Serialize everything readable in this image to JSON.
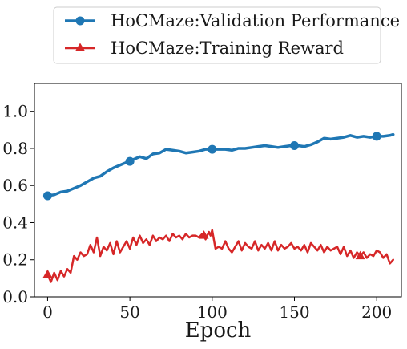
{
  "chart_data": {
    "type": "line",
    "xlabel": "Epoch",
    "ylabel": "",
    "xlim": [
      -8,
      215
    ],
    "ylim": [
      0.0,
      1.15
    ],
    "xticks": [
      0,
      50,
      100,
      150,
      200
    ],
    "yticks": [
      0.0,
      0.2,
      0.4,
      0.6,
      0.8,
      1.0
    ],
    "xtick_labels": [
      "0",
      "50",
      "100",
      "150",
      "200"
    ],
    "ytick_labels": [
      "0.0",
      "0.2",
      "0.4",
      "0.6",
      "0.8",
      "1.0"
    ],
    "grid": false,
    "legend_position": "top-center-outside",
    "series": [
      {
        "name": "HoCMaze:Validation Performance",
        "color": "#1f77b4",
        "marker": "circle",
        "marker_every": 50,
        "x": [
          0,
          4,
          8,
          12,
          16,
          20,
          24,
          28,
          32,
          36,
          40,
          44,
          48,
          50,
          52,
          56,
          60,
          64,
          68,
          72,
          76,
          80,
          84,
          88,
          92,
          96,
          100,
          104,
          108,
          112,
          116,
          120,
          124,
          128,
          132,
          136,
          140,
          144,
          148,
          150,
          152,
          156,
          160,
          164,
          168,
          172,
          176,
          180,
          184,
          188,
          192,
          196,
          200,
          204,
          208,
          210
        ],
        "values": [
          0.545,
          0.55,
          0.565,
          0.57,
          0.585,
          0.6,
          0.62,
          0.64,
          0.65,
          0.675,
          0.695,
          0.71,
          0.725,
          0.73,
          0.74,
          0.755,
          0.745,
          0.77,
          0.775,
          0.795,
          0.79,
          0.785,
          0.775,
          0.78,
          0.785,
          0.795,
          0.795,
          0.795,
          0.795,
          0.79,
          0.8,
          0.8,
          0.805,
          0.81,
          0.815,
          0.81,
          0.805,
          0.81,
          0.815,
          0.815,
          0.815,
          0.81,
          0.82,
          0.835,
          0.855,
          0.85,
          0.855,
          0.86,
          0.87,
          0.86,
          0.865,
          0.86,
          0.865,
          0.865,
          0.87,
          0.875
        ]
      },
      {
        "name": "HoCMaze:Training Reward",
        "color": "#d62728",
        "marker": "triangle",
        "marker_every": 95,
        "x": [
          0,
          2,
          4,
          6,
          8,
          10,
          12,
          14,
          16,
          18,
          20,
          22,
          24,
          26,
          28,
          30,
          32,
          34,
          36,
          38,
          40,
          42,
          44,
          46,
          48,
          50,
          52,
          54,
          56,
          58,
          60,
          62,
          64,
          66,
          68,
          70,
          72,
          74,
          76,
          78,
          80,
          82,
          84,
          86,
          88,
          90,
          92,
          94,
          95,
          96,
          98,
          99,
          100,
          102,
          104,
          106,
          108,
          110,
          112,
          114,
          116,
          118,
          120,
          122,
          124,
          126,
          128,
          130,
          132,
          134,
          136,
          138,
          140,
          142,
          144,
          146,
          148,
          150,
          152,
          154,
          156,
          158,
          160,
          162,
          164,
          166,
          168,
          170,
          172,
          174,
          176,
          178,
          180,
          182,
          184,
          186,
          188,
          190,
          192,
          194,
          196,
          198,
          200,
          202,
          204,
          206,
          208,
          210
        ],
        "values": [
          0.12,
          0.08,
          0.13,
          0.09,
          0.14,
          0.11,
          0.15,
          0.13,
          0.22,
          0.2,
          0.24,
          0.22,
          0.23,
          0.28,
          0.24,
          0.32,
          0.22,
          0.27,
          0.25,
          0.29,
          0.23,
          0.3,
          0.24,
          0.27,
          0.3,
          0.26,
          0.32,
          0.28,
          0.33,
          0.29,
          0.31,
          0.28,
          0.33,
          0.3,
          0.32,
          0.31,
          0.33,
          0.3,
          0.34,
          0.32,
          0.33,
          0.31,
          0.34,
          0.32,
          0.33,
          0.33,
          0.32,
          0.34,
          0.33,
          0.31,
          0.35,
          0.33,
          0.36,
          0.26,
          0.27,
          0.26,
          0.3,
          0.26,
          0.24,
          0.27,
          0.3,
          0.25,
          0.29,
          0.27,
          0.26,
          0.3,
          0.25,
          0.28,
          0.26,
          0.29,
          0.25,
          0.3,
          0.25,
          0.28,
          0.26,
          0.27,
          0.29,
          0.26,
          0.27,
          0.25,
          0.28,
          0.24,
          0.29,
          0.27,
          0.25,
          0.28,
          0.24,
          0.27,
          0.25,
          0.26,
          0.27,
          0.23,
          0.27,
          0.22,
          0.25,
          0.21,
          0.24,
          0.22,
          0.24,
          0.21,
          0.23,
          0.22,
          0.25,
          0.24,
          0.21,
          0.23,
          0.18,
          0.2
        ]
      }
    ]
  }
}
